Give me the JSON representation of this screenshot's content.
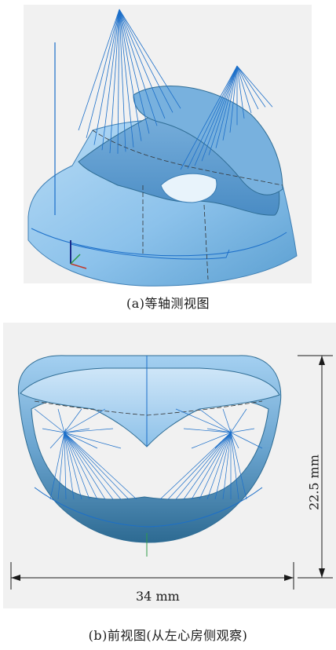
{
  "colors": {
    "surface": "#8ec3ea",
    "surface_dark": "#2f6d95",
    "wire": "#1c6fc9",
    "background": "#f1f1f1"
  },
  "panel_a": {
    "caption": "(a)等轴测视图"
  },
  "panel_b": {
    "caption": "(b)前视图(从左心房侧观察)",
    "width_label": "34 mm",
    "height_label": "22.5 mm"
  }
}
